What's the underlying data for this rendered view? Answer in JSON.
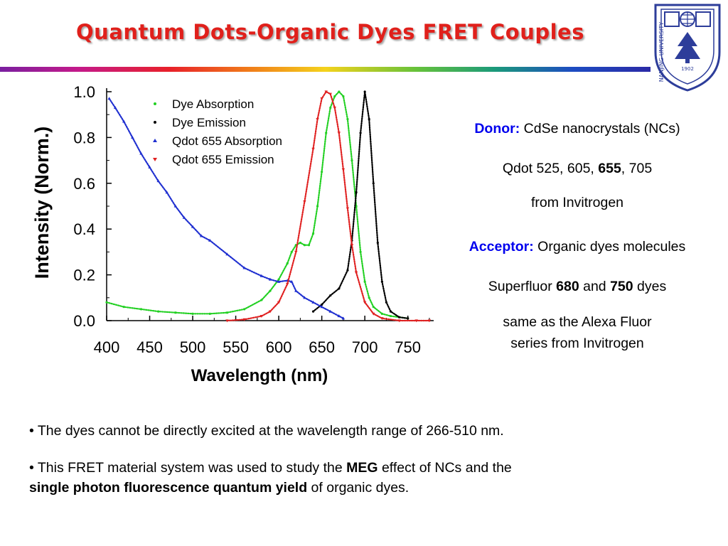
{
  "slide": {
    "title": "Quantum Dots-Organic Dyes FRET Couples",
    "logo": {
      "text": "NANJING UNIVERSITY",
      "year": "1902",
      "icon": "university-seal-icon",
      "color": "#2d3d9a"
    },
    "accent_colors": {
      "title": "#e0201b",
      "label_blue": "#0000ee"
    }
  },
  "info": {
    "donor_label": "Donor:",
    "donor_text": "CdSe nanocrystals (NCs)",
    "qdot_prefix": "Qdot 525, 605, ",
    "qdot_bold": "655",
    "qdot_suffix": ", 705",
    "qdot_source": "from Invitrogen",
    "acceptor_label": "Acceptor:",
    "acceptor_text": "Organic dyes molecules",
    "superfluor_prefix": "Superfluor ",
    "superfluor_bold1": "680",
    "superfluor_mid": " and ",
    "superfluor_bold2": "750",
    "superfluor_suffix": " dyes",
    "alexa_line1": "same as the Alexa Fluor",
    "alexa_line2": "series from Invitrogen"
  },
  "bullets": {
    "b1_text": "• The dyes cannot be directly excited at the wavelength range of 266-510 nm.",
    "b2_pre": "• This FRET material system was used to study the ",
    "b2_bold1": "MEG",
    "b2_mid": " effect of NCs and the",
    "b2_bold2": "single photon fluorescence quantum yield",
    "b2_post": " of organic dyes."
  },
  "chart_data": {
    "type": "scatter",
    "xlabel": "Wavelength (nm)",
    "ylabel": "Intensity (Norm.)",
    "xlim": [
      400,
      780
    ],
    "ylim": [
      0.0,
      1.0
    ],
    "xticks": [
      400,
      450,
      500,
      550,
      600,
      650,
      700,
      750
    ],
    "yticks": [
      0.0,
      0.2,
      0.4,
      0.6,
      0.8,
      1.0
    ],
    "xtick_labels": [
      "400",
      "450",
      "500",
      "550",
      "600",
      "650",
      "700",
      "750"
    ],
    "ytick_labels": [
      "0.0",
      "0.2",
      "0.4",
      "0.6",
      "0.8",
      "1.0"
    ],
    "grid": false,
    "legend_position": "top-left",
    "series": [
      {
        "name": "Dye Absorption",
        "color": "#22d022",
        "marker": "dot",
        "x": [
          400,
          420,
          440,
          460,
          480,
          500,
          520,
          540,
          560,
          580,
          590,
          600,
          610,
          615,
          620,
          625,
          630,
          635,
          640,
          645,
          650,
          655,
          660,
          665,
          670,
          675,
          680,
          685,
          690,
          695,
          700,
          705,
          710,
          720,
          730,
          740,
          750
        ],
        "y": [
          0.08,
          0.06,
          0.05,
          0.04,
          0.035,
          0.03,
          0.03,
          0.035,
          0.05,
          0.09,
          0.13,
          0.18,
          0.25,
          0.3,
          0.33,
          0.34,
          0.33,
          0.33,
          0.38,
          0.5,
          0.65,
          0.82,
          0.93,
          0.98,
          1.0,
          0.98,
          0.88,
          0.7,
          0.5,
          0.3,
          0.17,
          0.1,
          0.06,
          0.03,
          0.02,
          0.015,
          0.01
        ]
      },
      {
        "name": "Dye Emission",
        "color": "#000000",
        "marker": "dot",
        "x": [
          640,
          650,
          660,
          670,
          680,
          685,
          690,
          695,
          700,
          705,
          710,
          715,
          720,
          725,
          730,
          740,
          750
        ],
        "y": [
          0.04,
          0.07,
          0.11,
          0.14,
          0.22,
          0.35,
          0.56,
          0.82,
          1.0,
          0.88,
          0.6,
          0.34,
          0.17,
          0.08,
          0.04,
          0.015,
          0.01
        ]
      },
      {
        "name": "Qdot 655 Absorption",
        "color": "#1f2fd0",
        "marker": "triangle-up",
        "x": [
          403,
          410,
          420,
          430,
          440,
          450,
          460,
          470,
          480,
          490,
          500,
          510,
          520,
          540,
          560,
          580,
          590,
          600,
          610,
          615,
          620,
          630,
          640,
          650,
          660,
          670,
          675
        ],
        "y": [
          0.97,
          0.93,
          0.87,
          0.8,
          0.73,
          0.67,
          0.61,
          0.56,
          0.5,
          0.45,
          0.41,
          0.37,
          0.35,
          0.29,
          0.23,
          0.195,
          0.18,
          0.17,
          0.175,
          0.17,
          0.13,
          0.1,
          0.08,
          0.06,
          0.04,
          0.02,
          0.01
        ]
      },
      {
        "name": "Qdot 655 Emission",
        "color": "#e02020",
        "marker": "triangle-down",
        "x": [
          540,
          560,
          580,
          590,
          600,
          610,
          620,
          630,
          640,
          645,
          650,
          655,
          660,
          665,
          670,
          675,
          680,
          685,
          690,
          700,
          710,
          720,
          740,
          760,
          775
        ],
        "y": [
          0.0,
          0.005,
          0.02,
          0.04,
          0.08,
          0.16,
          0.3,
          0.52,
          0.75,
          0.88,
          0.97,
          1.0,
          0.99,
          0.93,
          0.82,
          0.66,
          0.49,
          0.33,
          0.21,
          0.08,
          0.03,
          0.01,
          0.0,
          0.0,
          0.0
        ]
      }
    ]
  }
}
